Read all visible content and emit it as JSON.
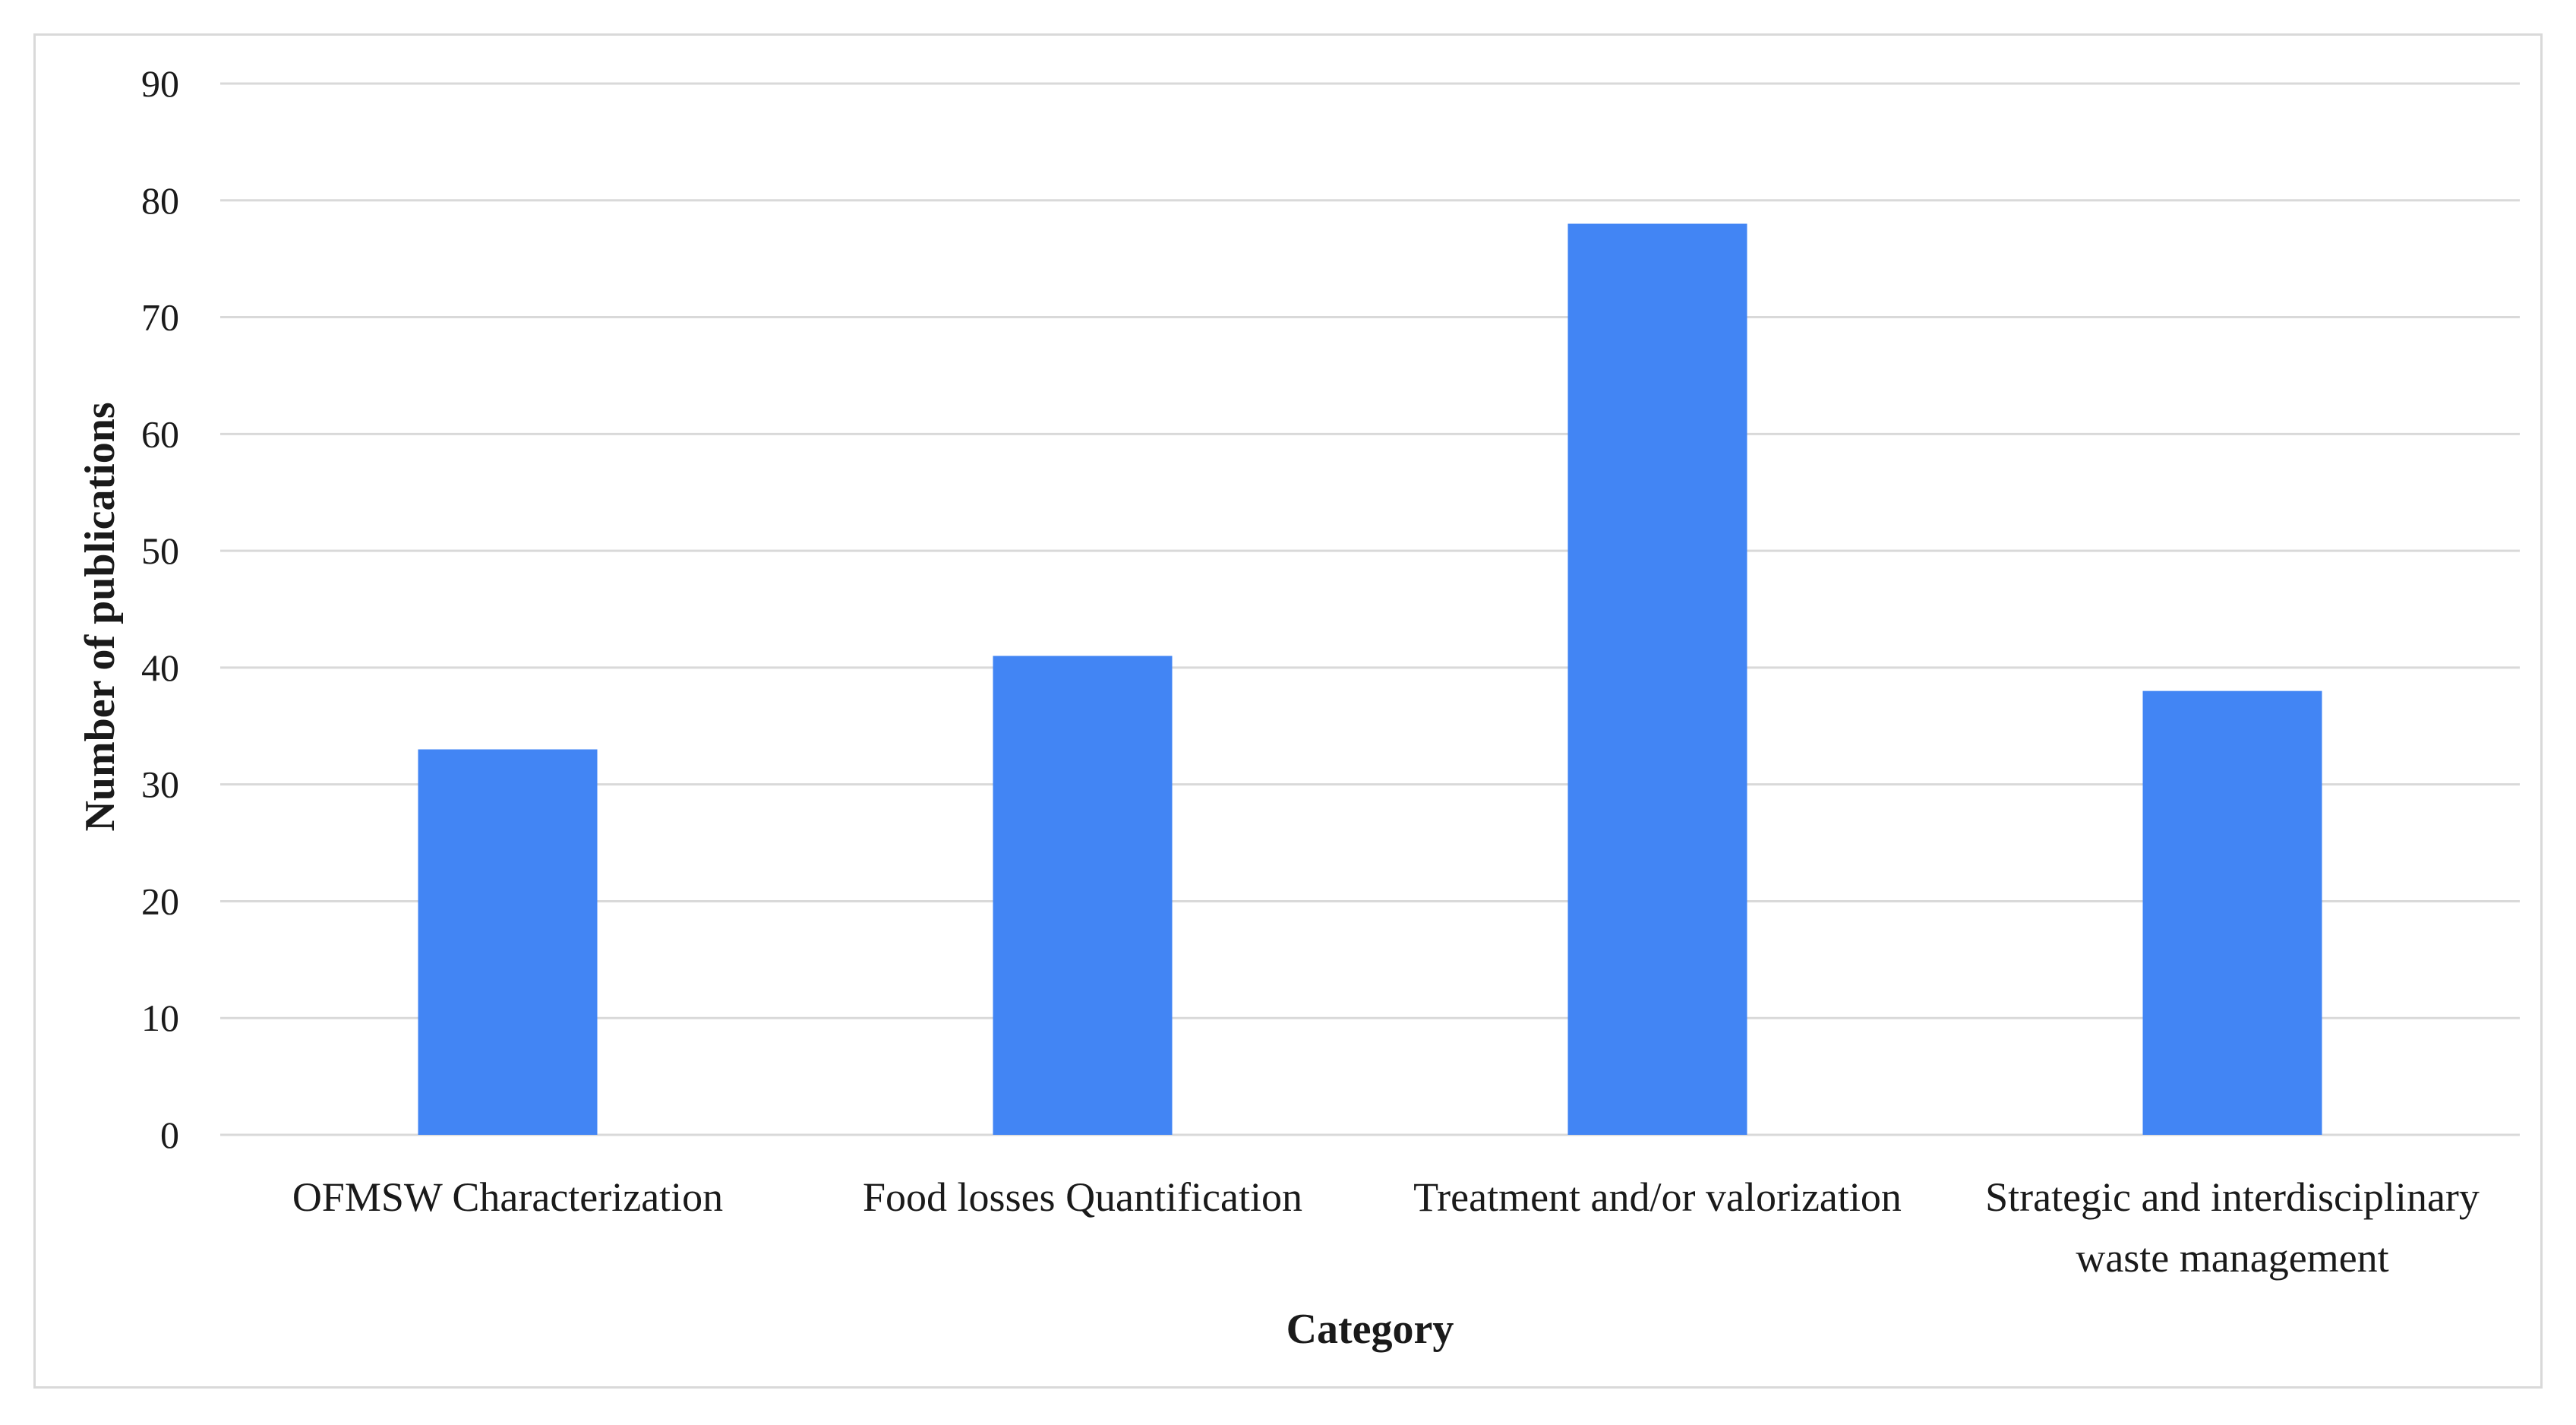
{
  "chart_data": {
    "type": "bar",
    "categories": [
      [
        "OFMSW Characterization"
      ],
      [
        "Food losses Quantification"
      ],
      [
        "Treatment and/or valorization"
      ],
      [
        "Strategic and interdisciplinary",
        "waste management"
      ]
    ],
    "values": [
      33,
      41,
      78,
      38
    ],
    "xlabel": "Category",
    "ylabel": "Number of publications",
    "ylim": [
      0,
      90
    ],
    "yticks": [
      0,
      10,
      20,
      30,
      40,
      50,
      60,
      70,
      80,
      90
    ],
    "grid": true,
    "bar_color": "#4285f4",
    "grid_color": "#d9d9d9"
  }
}
